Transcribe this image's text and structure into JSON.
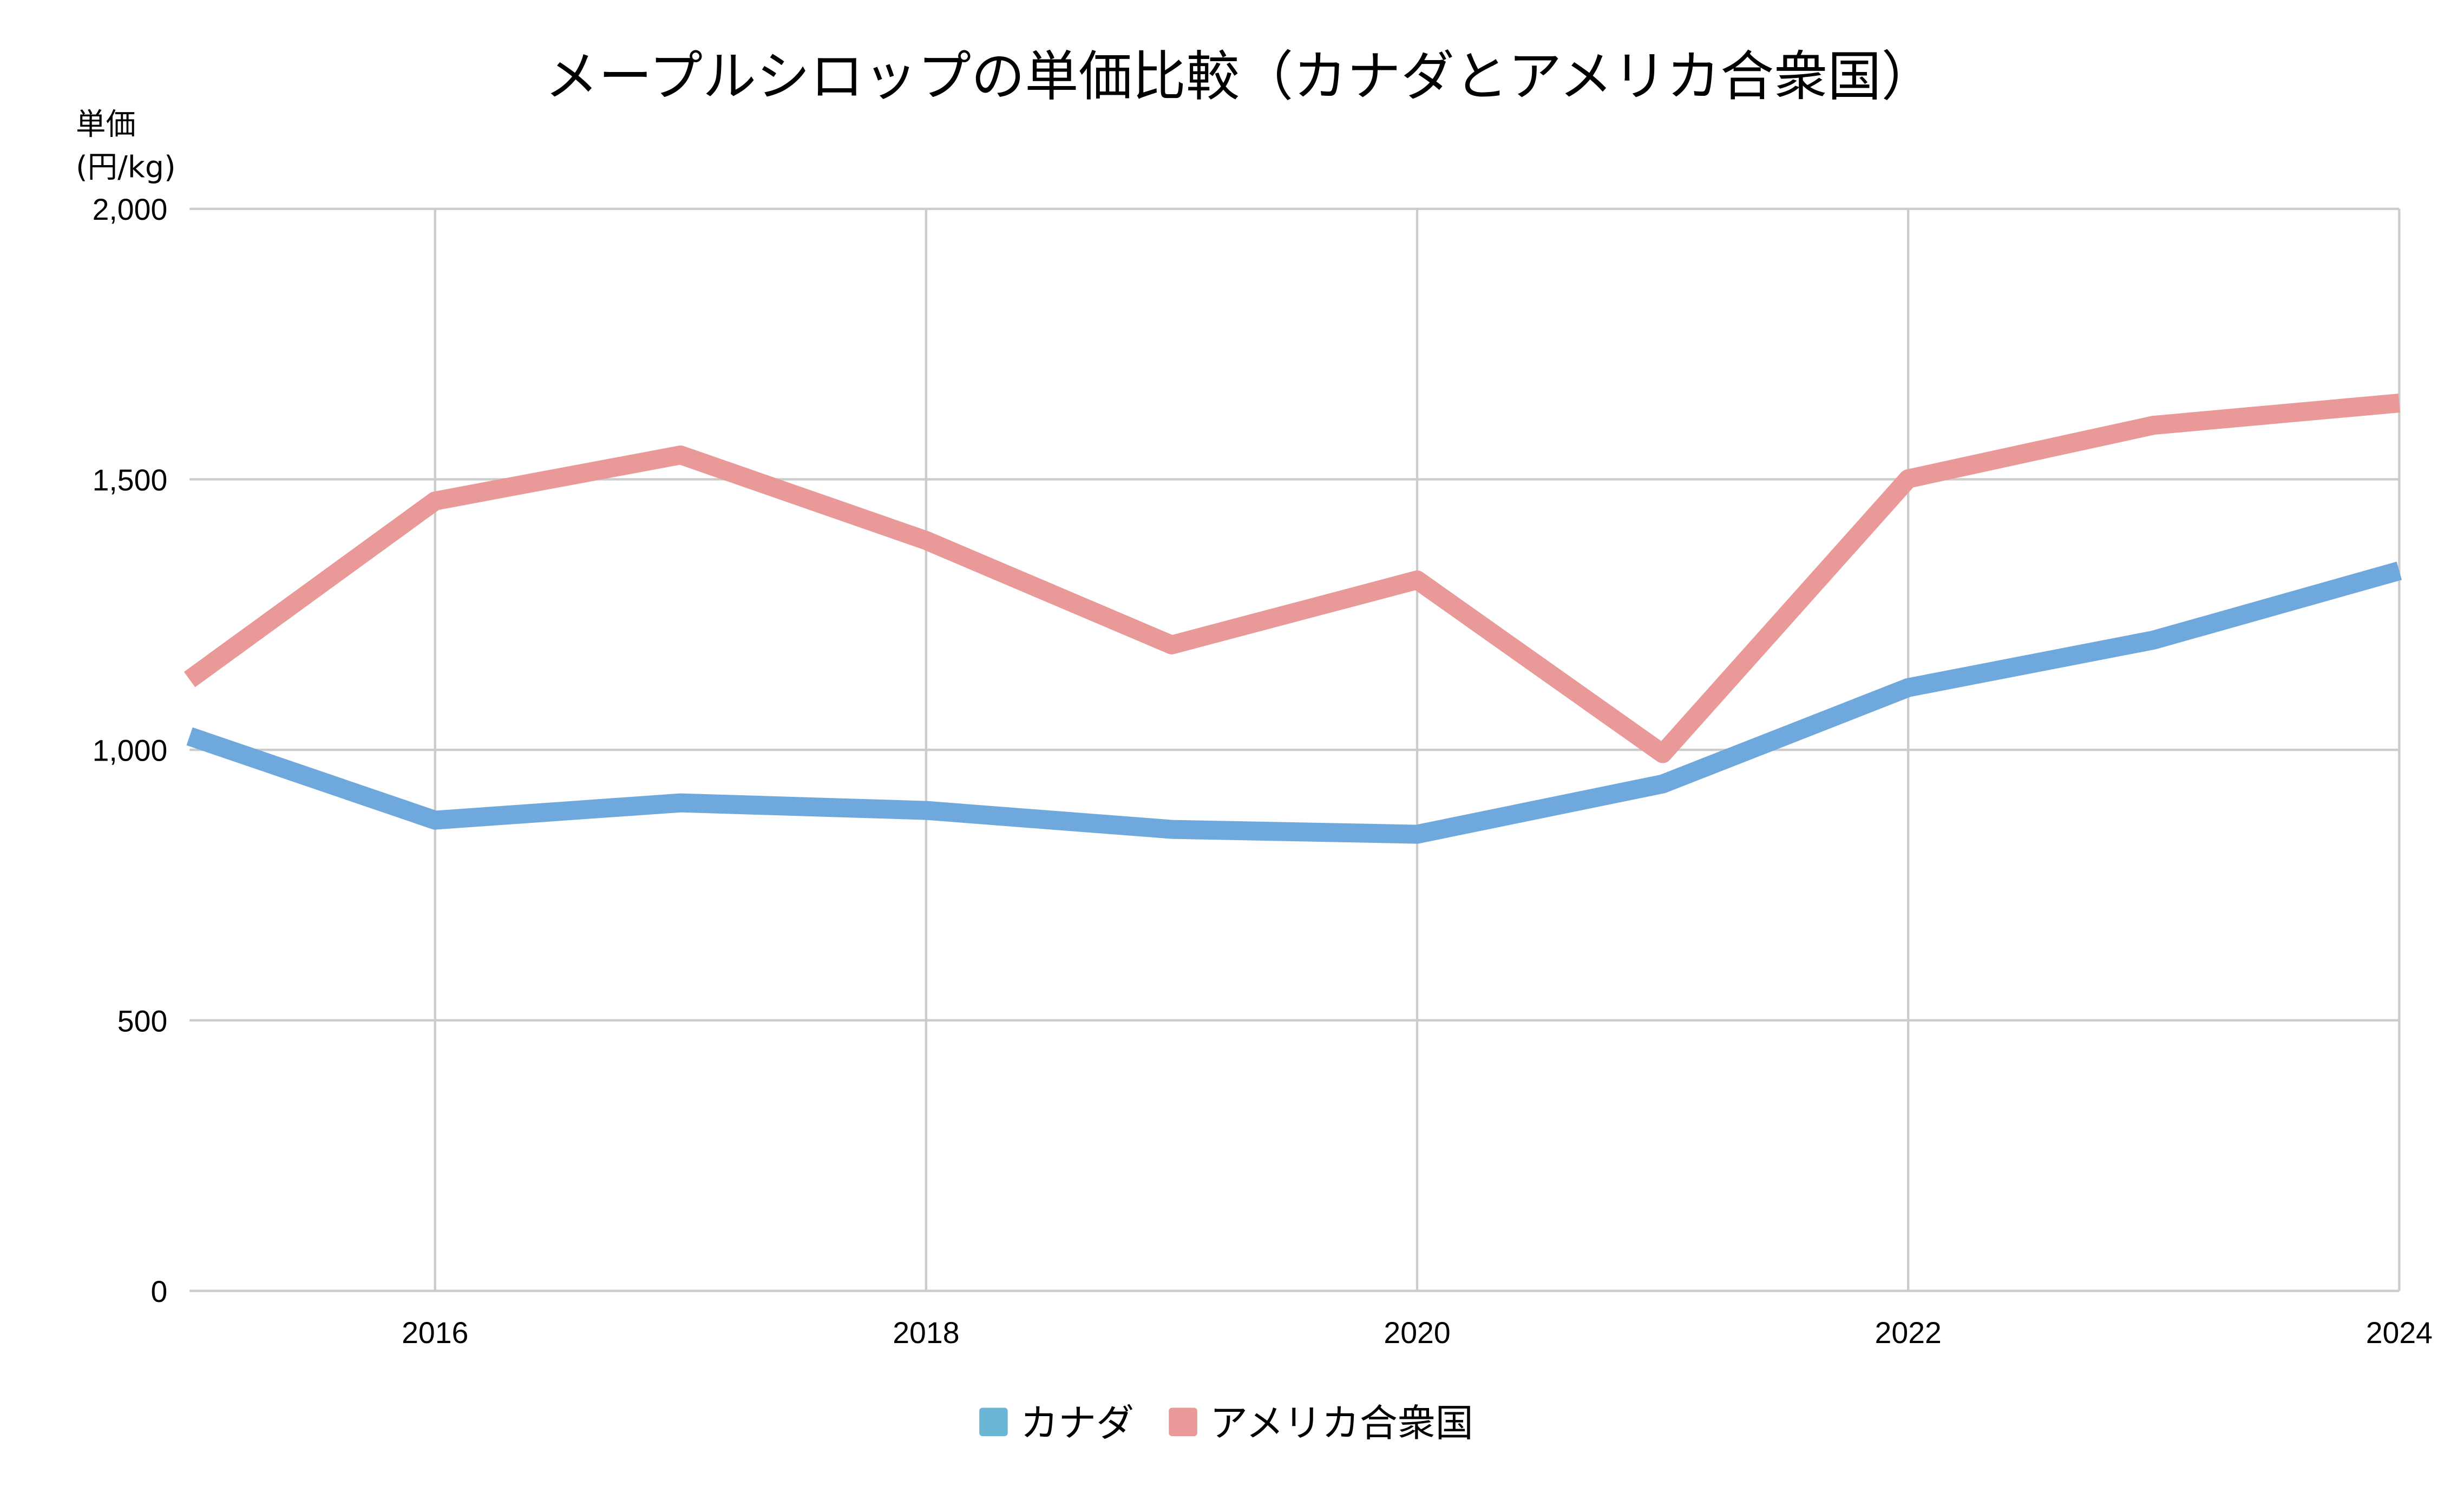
{
  "chart_data": {
    "type": "line",
    "title": "メープルシロップの単価比較（カナダとアメリカ合衆国）",
    "ylabel_line1": "単価",
    "ylabel_line2": "(円/kg)",
    "xlabel": "",
    "x": [
      2015,
      2016,
      2017,
      2018,
      2019,
      2020,
      2021,
      2022,
      2023,
      2024
    ],
    "xticks": [
      "2016",
      "2018",
      "2020",
      "2022",
      "2024"
    ],
    "yticks": [
      "0",
      "500",
      "1,000",
      "1,500",
      "2,000"
    ],
    "ylim": [
      0,
      2000
    ],
    "xlim": [
      2015,
      2024
    ],
    "grid": true,
    "legend_position": "bottom",
    "series": [
      {
        "name": "カナダ",
        "color": "#6fa8dc",
        "legend_color": "#6bb6d6",
        "values": [
          1025,
          870,
          902,
          888,
          853,
          844,
          937,
          1115,
          1203,
          1331
        ]
      },
      {
        "name": "アメリカ合衆国",
        "color": "#ea9999",
        "legend_color": "#ea9999",
        "values": [
          1130,
          1460,
          1545,
          1387,
          1194,
          1314,
          993,
          1501,
          1600,
          1641
        ]
      }
    ]
  }
}
